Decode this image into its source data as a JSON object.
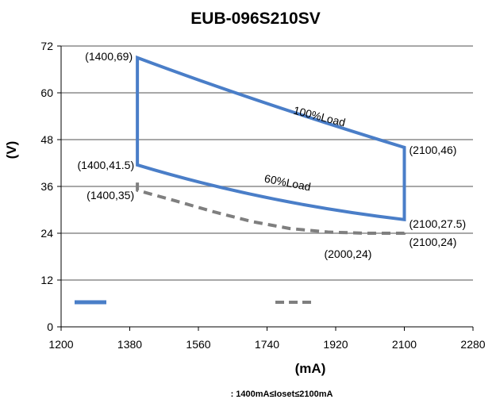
{
  "chart_data": {
    "type": "line",
    "title": "EUB-096S210SV",
    "xlabel": "(mA)",
    "ylabel": "(V)",
    "xlim": [
      1200,
      2280
    ],
    "ylim": [
      0,
      72
    ],
    "xticks": [
      1200,
      1380,
      1560,
      1740,
      1920,
      2100,
      2280
    ],
    "yticks": [
      0,
      12,
      24,
      36,
      48,
      60,
      72
    ],
    "grid": true,
    "footnote": ": 1400mA≤Ioset≤2100mA",
    "series": [
      {
        "style": "solid",
        "color": "#4a7ec8",
        "x": [
          1400,
          1400,
          1750,
          2100,
          2100,
          1750,
          1400
        ],
        "y": [
          41.5,
          69,
          56.5,
          46,
          27.5,
          33,
          41.5
        ]
      },
      {
        "style": "dashed",
        "color": "#7f7f7f",
        "x": [
          1400,
          1400,
          1500,
          1600,
          1700,
          1800,
          1900,
          2000,
          2100,
          2100
        ],
        "y": [
          37,
          35,
          32.3,
          29.5,
          27,
          25.2,
          24.3,
          24,
          24,
          25.5
        ]
      }
    ],
    "curve_labels": [
      {
        "text": "100%Load",
        "x": 1875,
        "y": 53
      },
      {
        "text": "60%Load",
        "x": 1792,
        "y": 36
      }
    ],
    "point_labels": [
      {
        "text": "(1400,69)",
        "x": 1400,
        "y": 69,
        "anchor": "end"
      },
      {
        "text": "(1400,41.5)",
        "x": 1400,
        "y": 41.5,
        "anchor": "end"
      },
      {
        "text": "(1400,35)",
        "x": 1400,
        "y": 35,
        "anchor": "end"
      },
      {
        "text": "(2100,46)",
        "x": 2100,
        "y": 46,
        "anchor": "start"
      },
      {
        "text": "(2100,27.5)",
        "x": 2100,
        "y": 27.5,
        "anchor": "start"
      },
      {
        "text": "(2100,24)",
        "x": 2100,
        "y": 24,
        "anchor": "start"
      },
      {
        "text": "(2000,24)",
        "x": 2000,
        "y": 24,
        "anchor": "middle"
      }
    ]
  }
}
